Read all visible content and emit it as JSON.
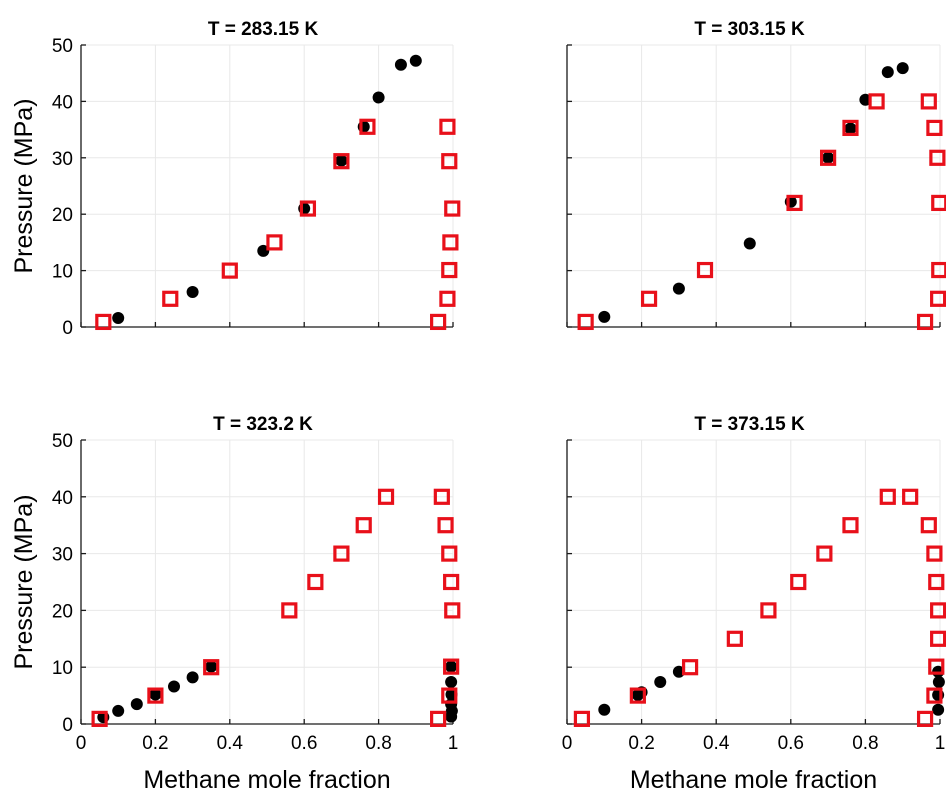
{
  "figure": {
    "x_axis_label": "Methane mole fraction",
    "y_axis_label": "Pressure (MPa)"
  },
  "colors": {
    "filled_marker": "#000000",
    "open_square": "#e8101a"
  },
  "chart_data": [
    {
      "type": "scatter",
      "title": "T = 283.15 K",
      "xlabel": "",
      "ylabel": "Pressure (MPa)",
      "xlim": [
        0,
        1
      ],
      "ylim": [
        0,
        50
      ],
      "xticks": [],
      "yticks": [
        "0",
        "10",
        "20",
        "30",
        "40",
        "50"
      ],
      "grid": true,
      "series": [
        {
          "marker": "filled-circle",
          "points": [
            [
              0.1,
              1.6
            ],
            [
              0.3,
              6.2
            ],
            [
              0.49,
              13.5
            ],
            [
              0.6,
              21.0
            ],
            [
              0.7,
              29.5
            ],
            [
              0.76,
              35.5
            ],
            [
              0.8,
              40.7
            ],
            [
              0.86,
              46.5
            ],
            [
              0.9,
              47.2
            ]
          ]
        },
        {
          "marker": "open-square",
          "points": [
            [
              0.06,
              0.9
            ],
            [
              0.24,
              5.0
            ],
            [
              0.4,
              10.0
            ],
            [
              0.52,
              15.0
            ],
            [
              0.61,
              21.0
            ],
            [
              0.7,
              29.4
            ],
            [
              0.77,
              35.5
            ],
            [
              0.96,
              0.9
            ],
            [
              0.985,
              5.0
            ],
            [
              0.99,
              10.1
            ],
            [
              0.993,
              15.0
            ],
            [
              0.998,
              21.0
            ],
            [
              0.99,
              29.4
            ],
            [
              0.985,
              35.5
            ]
          ]
        }
      ]
    },
    {
      "type": "scatter",
      "title": "T = 303.15 K",
      "xlabel": "",
      "ylabel": "",
      "xlim": [
        0,
        1
      ],
      "ylim": [
        0,
        50
      ],
      "xticks": [],
      "yticks": [],
      "grid": true,
      "series": [
        {
          "marker": "filled-circle",
          "points": [
            [
              0.1,
              1.8
            ],
            [
              0.3,
              6.8
            ],
            [
              0.49,
              14.8
            ],
            [
              0.6,
              22.2
            ],
            [
              0.7,
              30.0
            ],
            [
              0.76,
              35.2
            ],
            [
              0.8,
              40.3
            ],
            [
              0.86,
              45.2
            ],
            [
              0.9,
              45.9
            ]
          ]
        },
        {
          "marker": "open-square",
          "points": [
            [
              0.05,
              0.9
            ],
            [
              0.22,
              5.0
            ],
            [
              0.37,
              10.1
            ],
            [
              0.61,
              22.0
            ],
            [
              0.7,
              30.0
            ],
            [
              0.76,
              35.3
            ],
            [
              0.83,
              40.0
            ],
            [
              0.96,
              0.9
            ],
            [
              0.995,
              5.0
            ],
            [
              0.998,
              10.1
            ],
            [
              0.998,
              22.0
            ],
            [
              0.993,
              30.0
            ],
            [
              0.985,
              35.3
            ],
            [
              0.97,
              40.0
            ]
          ]
        }
      ]
    },
    {
      "type": "scatter",
      "title": "T = 323.2 K",
      "xlabel": "Methane mole fraction",
      "ylabel": "Pressure (MPa)",
      "xlim": [
        0,
        1
      ],
      "ylim": [
        0,
        50
      ],
      "xticks": [
        "0",
        "0.2",
        "0.4",
        "0.6",
        "0.8",
        "1"
      ],
      "yticks": [
        "0",
        "10",
        "20",
        "30",
        "40",
        "50"
      ],
      "grid": true,
      "series": [
        {
          "marker": "filled-circle",
          "points": [
            [
              0.06,
              1.2
            ],
            [
              0.1,
              2.3
            ],
            [
              0.15,
              3.5
            ],
            [
              0.2,
              5.2
            ],
            [
              0.25,
              6.6
            ],
            [
              0.3,
              8.2
            ],
            [
              0.35,
              10.1
            ],
            [
              0.995,
              1.3
            ],
            [
              0.997,
              2.3
            ],
            [
              0.995,
              3.5
            ],
            [
              0.996,
              5.2
            ],
            [
              0.995,
              7.4
            ],
            [
              0.995,
              10.1
            ]
          ]
        },
        {
          "marker": "open-square",
          "points": [
            [
              0.05,
              0.9
            ],
            [
              0.2,
              5.0
            ],
            [
              0.35,
              10.0
            ],
            [
              0.56,
              20.0
            ],
            [
              0.63,
              25.0
            ],
            [
              0.7,
              30.0
            ],
            [
              0.76,
              35.0
            ],
            [
              0.82,
              40.0
            ],
            [
              0.96,
              0.9
            ],
            [
              0.99,
              5.0
            ],
            [
              0.995,
              10.1
            ],
            [
              0.998,
              20.0
            ],
            [
              0.995,
              25.0
            ],
            [
              0.99,
              30.0
            ],
            [
              0.98,
              35.0
            ],
            [
              0.97,
              40.0
            ]
          ]
        }
      ]
    },
    {
      "type": "scatter",
      "title": "T = 373.15 K",
      "xlabel": "Methane mole fraction",
      "ylabel": "",
      "xlim": [
        0,
        1
      ],
      "ylim": [
        0,
        50
      ],
      "xticks": [
        "0",
        "0.2",
        "0.4",
        "0.6",
        "0.8",
        "1"
      ],
      "yticks": [],
      "grid": true,
      "series": [
        {
          "marker": "filled-circle",
          "points": [
            [
              0.1,
              2.5
            ],
            [
              0.2,
              5.6
            ],
            [
              0.25,
              7.4
            ],
            [
              0.3,
              9.2
            ],
            [
              0.19,
              5.1
            ],
            [
              0.995,
              2.5
            ],
            [
              0.995,
              5.1
            ],
            [
              0.997,
              7.4
            ],
            [
              0.995,
              9.2
            ]
          ]
        },
        {
          "marker": "open-square",
          "points": [
            [
              0.04,
              0.9
            ],
            [
              0.19,
              5.0
            ],
            [
              0.33,
              10.0
            ],
            [
              0.45,
              15.0
            ],
            [
              0.54,
              20.0
            ],
            [
              0.62,
              25.0
            ],
            [
              0.69,
              30.0
            ],
            [
              0.76,
              35.0
            ],
            [
              0.86,
              40.0
            ],
            [
              0.92,
              40.0
            ],
            [
              0.96,
              0.9
            ],
            [
              0.985,
              5.0
            ],
            [
              0.99,
              10.1
            ],
            [
              0.995,
              15.0
            ],
            [
              0.995,
              20.0
            ],
            [
              0.99,
              25.0
            ],
            [
              0.985,
              30.0
            ],
            [
              0.97,
              35.0
            ]
          ]
        }
      ]
    }
  ]
}
